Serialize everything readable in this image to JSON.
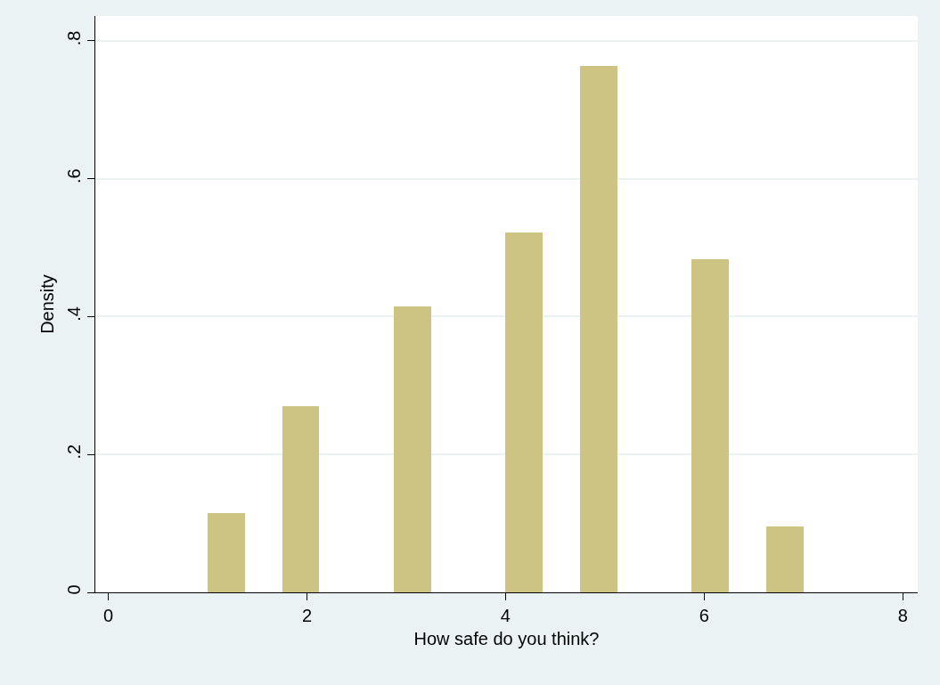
{
  "chart_data": {
    "type": "histogram",
    "xlabel": "How safe do you think?",
    "ylabel": "Density",
    "bins": [
      1,
      1.375,
      1.75,
      2.125,
      2.5,
      2.875,
      3.25,
      3.625,
      4,
      4.375,
      4.75,
      5.125,
      5.5,
      5.875,
      6.25,
      6.625,
      7
    ],
    "values": [
      0.115,
      0,
      0.27,
      0,
      0,
      0.415,
      0,
      0,
      0.522,
      0,
      0.764,
      0,
      0,
      0.483,
      0,
      0.096
    ],
    "color": "#cdc383",
    "xlim": [
      -0.13,
      8.15
    ],
    "xticks": [
      0,
      2,
      4,
      6,
      8
    ],
    "ylim": [
      0,
      0.836
    ],
    "yticks": [
      0,
      {
        "value": 0.2,
        "label": ".2"
      },
      {
        "value": 0.4,
        "label": ".4"
      },
      {
        "value": 0.6,
        "label": ".6"
      },
      {
        "value": 0.8,
        "label": ".8"
      }
    ],
    "grid": "y"
  }
}
